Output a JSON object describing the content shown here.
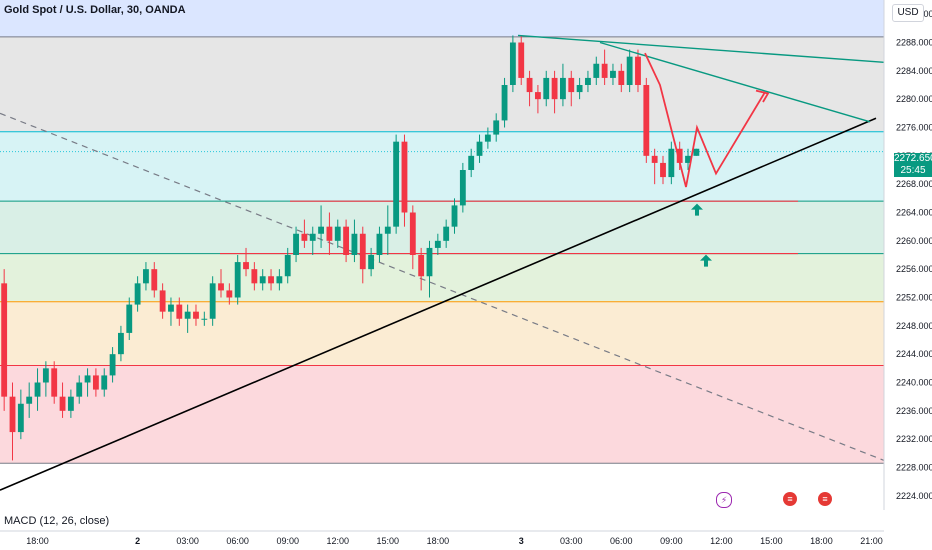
{
  "header": {
    "title": "Gold Spot / U.S. Dollar, 30, OANDA",
    "currency": "USD"
  },
  "price_tag": {
    "price": "2272.650",
    "countdown": "25:45"
  },
  "indicator": {
    "label": "MACD (12, 26, close)"
  },
  "events": [
    {
      "icon": "lightning-icon",
      "color": "#9c27b0"
    },
    {
      "icon": "us-flag-icon",
      "color": "#e53935"
    },
    {
      "icon": "us-flag-icon",
      "color": "#e53935"
    }
  ],
  "chart_data": {
    "type": "candlestick",
    "ylim": [
      2222,
      2294
    ],
    "y_ticks": [
      "2292.000",
      "2288.000",
      "2284.000",
      "2280.000",
      "2276.000",
      "2272.000",
      "2268.000",
      "2264.000",
      "2260.000",
      "2256.000",
      "2252.000",
      "2248.000",
      "2244.000",
      "2240.000",
      "2236.000",
      "2232.000",
      "2228.000",
      "2224.000"
    ],
    "x_tick_labels": [
      "18:00",
      "2",
      "03:00",
      "06:00",
      "09:00",
      "12:00",
      "15:00",
      "18:00",
      "3",
      "03:00",
      "06:00",
      "09:00",
      "12:00",
      "15:00",
      "18:00",
      "21:00"
    ],
    "x_tick_index": [
      4,
      16,
      22,
      28,
      34,
      40,
      46,
      52,
      62,
      68,
      74,
      80,
      86,
      92,
      98,
      104
    ],
    "n_slots": 106,
    "colors": {
      "up": "#089981",
      "down": "#f23645"
    },
    "candles": [
      [
        2254,
        2256,
        2236,
        2238
      ],
      [
        2238,
        2240,
        2229,
        2233
      ],
      [
        2233,
        2239,
        2232,
        2237
      ],
      [
        2237,
        2240,
        2235,
        2238
      ],
      [
        2238,
        2242,
        2236,
        2240
      ],
      [
        2240,
        2243,
        2238,
        2242
      ],
      [
        2242,
        2243,
        2237,
        2238
      ],
      [
        2238,
        2240,
        2235,
        2236
      ],
      [
        2236,
        2239,
        2235,
        2238
      ],
      [
        2238,
        2241,
        2237,
        2240
      ],
      [
        2240,
        2242,
        2238,
        2241
      ],
      [
        2241,
        2242,
        2238,
        2239
      ],
      [
        2239,
        2242,
        2238,
        2241
      ],
      [
        2241,
        2245,
        2240,
        2244
      ],
      [
        2244,
        2248,
        2243,
        2247
      ],
      [
        2247,
        2252,
        2246,
        2251
      ],
      [
        2251,
        2255,
        2250,
        2254
      ],
      [
        2254,
        2257,
        2253,
        2256
      ],
      [
        2256,
        2257,
        2252,
        2253
      ],
      [
        2253,
        2254,
        2249,
        2250
      ],
      [
        2250,
        2252,
        2248,
        2251
      ],
      [
        2251,
        2252,
        2248,
        2249
      ],
      [
        2249,
        2251,
        2247,
        2250
      ],
      [
        2250,
        2251,
        2248,
        2249
      ],
      [
        2249,
        2250,
        2248,
        2249
      ],
      [
        2249,
        2255,
        2248,
        2254
      ],
      [
        2254,
        2256,
        2252,
        2253
      ],
      [
        2253,
        2254,
        2251,
        2252
      ],
      [
        2252,
        2258,
        2251,
        2257
      ],
      [
        2257,
        2259,
        2255,
        2256
      ],
      [
        2256,
        2257,
        2253,
        2254
      ],
      [
        2254,
        2256,
        2253,
        2255
      ],
      [
        2255,
        2256,
        2253,
        2254
      ],
      [
        2254,
        2256,
        2253,
        2255
      ],
      [
        2255,
        2259,
        2254,
        2258
      ],
      [
        2258,
        2262,
        2257,
        2261
      ],
      [
        2261,
        2263,
        2259,
        2260
      ],
      [
        2260,
        2262,
        2258,
        2261
      ],
      [
        2261,
        2265,
        2259,
        2262
      ],
      [
        2262,
        2264,
        2258,
        2260
      ],
      [
        2260,
        2263,
        2259,
        2262
      ],
      [
        2262,
        2263,
        2257,
        2258
      ],
      [
        2258,
        2263,
        2257,
        2261
      ],
      [
        2261,
        2262,
        2254,
        2256
      ],
      [
        2256,
        2259,
        2255,
        2258
      ],
      [
        2258,
        2262,
        2257,
        2261
      ],
      [
        2261,
        2265,
        2258,
        2262
      ],
      [
        2262,
        2275,
        2261,
        2274
      ],
      [
        2274,
        2275,
        2262,
        2264
      ],
      [
        2264,
        2265,
        2256,
        2258
      ],
      [
        2258,
        2259,
        2253,
        2255
      ],
      [
        2255,
        2260,
        2252,
        2259
      ],
      [
        2259,
        2261,
        2258,
        2260
      ],
      [
        2260,
        2263,
        2259,
        2262
      ],
      [
        2262,
        2266,
        2261,
        2265
      ],
      [
        2265,
        2271,
        2264,
        2270
      ],
      [
        2270,
        2273,
        2269,
        2272
      ],
      [
        2272,
        2275,
        2271,
        2274
      ],
      [
        2274,
        2276,
        2273,
        2275
      ],
      [
        2275,
        2278,
        2274,
        2277
      ],
      [
        2277,
        2283,
        2276,
        2282
      ],
      [
        2282,
        2289,
        2281,
        2288
      ],
      [
        2288,
        2289,
        2282,
        2283
      ],
      [
        2283,
        2284,
        2279,
        2281
      ],
      [
        2281,
        2282,
        2278,
        2280
      ],
      [
        2280,
        2284,
        2279,
        2283
      ],
      [
        2283,
        2284,
        2278,
        2280
      ],
      [
        2280,
        2285,
        2279,
        2283
      ],
      [
        2283,
        2284,
        2279,
        2281
      ],
      [
        2281,
        2283,
        2280,
        2282
      ],
      [
        2282,
        2284,
        2281,
        2283
      ],
      [
        2283,
        2286,
        2282,
        2285
      ],
      [
        2285,
        2287,
        2282,
        2283
      ],
      [
        2283,
        2285,
        2282,
        2284
      ],
      [
        2284,
        2285,
        2281,
        2282
      ],
      [
        2282,
        2287,
        2281,
        2286
      ],
      [
        2286,
        2287,
        2281,
        2282
      ],
      [
        2282,
        2283,
        2271,
        2272
      ],
      [
        2272,
        2273,
        2268,
        2271
      ],
      [
        2271,
        2272,
        2268,
        2269
      ],
      [
        2269,
        2274,
        2268,
        2273
      ],
      [
        2273,
        2274,
        2270,
        2271
      ],
      [
        2271,
        2273,
        2270,
        2272
      ],
      [
        2272,
        2273,
        2272,
        2273
      ]
    ],
    "horizontal_levels": [
      {
        "price": 2288.8,
        "color": "#787b86"
      },
      {
        "price": 2275.4,
        "color": "#00bcd4"
      },
      {
        "price": 2272.6,
        "color": "#26c6da",
        "dotted": true
      },
      {
        "price": 2265.6,
        "color": "#089981"
      },
      {
        "price": 2258.2,
        "color": "#089981"
      },
      {
        "price": 2251.4,
        "color": "#ff9800"
      },
      {
        "price": 2242.4,
        "color": "#f23645"
      },
      {
        "price": 2228.6,
        "color": "#787b86"
      }
    ],
    "zones": [
      {
        "from": 2288.8,
        "to": 2294,
        "color": "#dbe6ff"
      },
      {
        "from": 2275.4,
        "to": 2288.8,
        "color": "#e6e6e6"
      },
      {
        "from": 2265.6,
        "to": 2275.4,
        "color": "#d7f3f5"
      },
      {
        "from": 2258.2,
        "to": 2265.6,
        "color": "#d9efe6"
      },
      {
        "from": 2251.4,
        "to": 2258.2,
        "color": "#e3f2dc"
      },
      {
        "from": 2242.4,
        "to": 2251.4,
        "color": "#fbecd3"
      },
      {
        "from": 2228.6,
        "to": 2242.4,
        "color": "#fcd9dd"
      }
    ]
  }
}
